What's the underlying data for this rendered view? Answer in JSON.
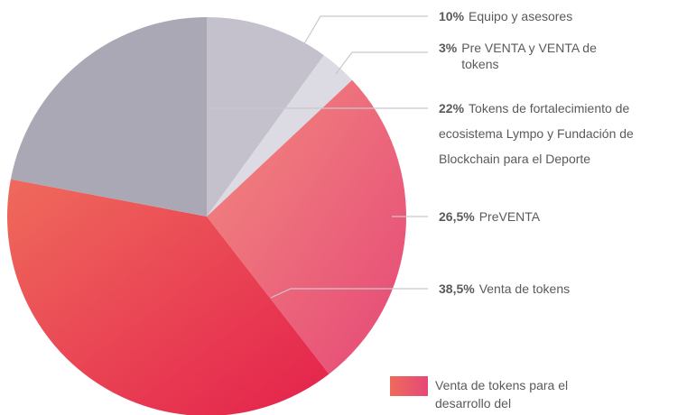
{
  "chart_data": {
    "type": "pie",
    "categories": [
      "Equipo y asesores",
      "Pre VENTA y VENTA de tokens",
      "PreVENTA",
      "Venta de tokens",
      "Tokens de fortalecimiento de ecosistema Lympo y Fundación de Blockchain para el Deporte"
    ],
    "values": [
      10,
      3,
      26.5,
      38.5,
      22
    ],
    "value_labels": [
      "10%",
      "3%",
      "26,5%",
      "38,5%",
      "22%"
    ],
    "colors": [
      [
        "#c4c1cc"
      ],
      [
        "#dcdae2"
      ],
      [
        "#f28a7f",
        "#e64877"
      ],
      [
        "#ef6a5c",
        "#e4214c"
      ],
      [
        "#aaa8b5"
      ]
    ],
    "legend": {
      "label": "Venta de tokens para el desarrollo del",
      "colors": [
        "#ef6a5c",
        "#e64877"
      ]
    }
  }
}
